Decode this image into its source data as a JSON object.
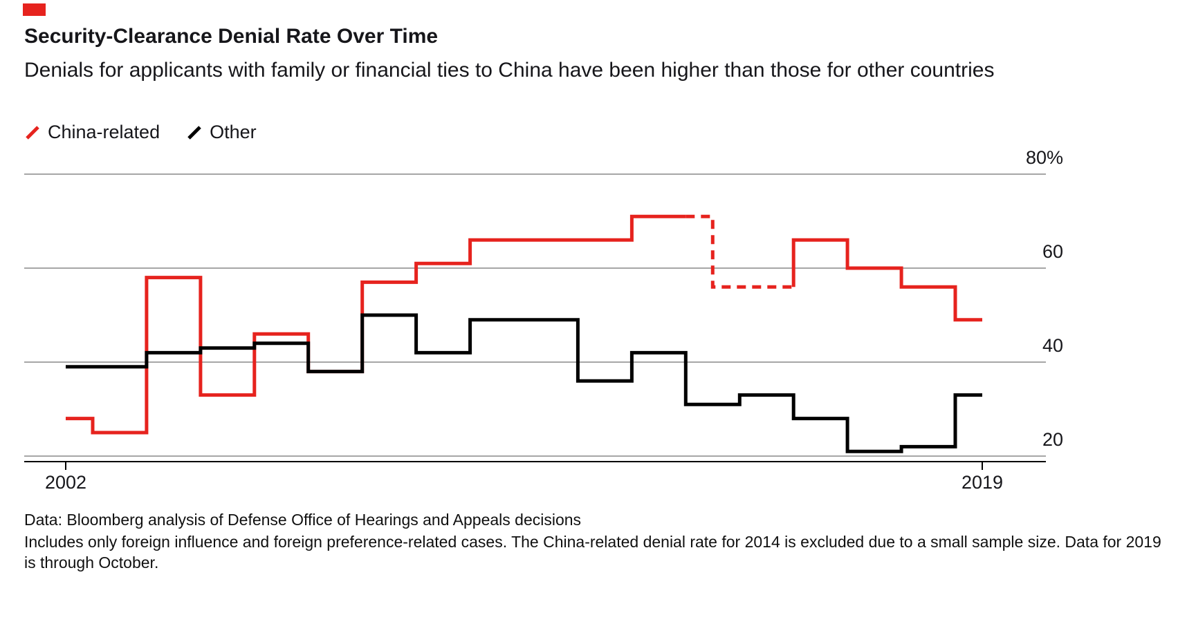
{
  "brand": {
    "accent_red": "#e6231e"
  },
  "header": {
    "title": "Security-Clearance Denial Rate Over Time",
    "subtitle": "Denials for applicants with family or financial ties to China have been higher than those for other countries"
  },
  "legend": {
    "items": [
      {
        "label": "China-related",
        "color": "#e6231e"
      },
      {
        "label": "Other",
        "color": "#000000"
      }
    ]
  },
  "chart_data": {
    "type": "step-line",
    "title": "Security-Clearance Denial Rate Over Time",
    "subtitle": "Denials for applicants with family or financial ties to China have been higher than those for other countries",
    "units": "percent",
    "x": [
      2002,
      2003,
      2004,
      2005,
      2006,
      2007,
      2008,
      2009,
      2010,
      2011,
      2012,
      2013,
      2014,
      2015,
      2016,
      2017,
      2018,
      2019
    ],
    "series": [
      {
        "name": "China-related",
        "color": "#e6231e",
        "values": [
          28,
          25,
          58,
          33,
          46,
          38,
          57,
          61,
          66,
          66,
          66,
          71,
          null,
          56,
          66,
          60,
          56,
          49
        ],
        "excluded_x": 2014,
        "excluded_note": "China-related denial rate for 2014 is excluded (drawn as dashed bridge)"
      },
      {
        "name": "Other",
        "color": "#000000",
        "values": [
          39,
          39,
          42,
          43,
          44,
          38,
          50,
          42,
          49,
          49,
          36,
          42,
          31,
          33,
          28,
          21,
          22,
          33
        ]
      }
    ],
    "ylim": [
      20,
      80
    ],
    "yticks": [
      80,
      60,
      40,
      20
    ],
    "ytick_labels": [
      "80%",
      "60",
      "40",
      "20"
    ],
    "xticks": [
      2002,
      2019
    ],
    "xtick_labels": [
      "2002",
      "2019"
    ],
    "xlabel": "",
    "ylabel": "",
    "grid": true,
    "legend_position": "top-left"
  },
  "footer": {
    "source": "Data: Bloomberg analysis of Defense Office of Hearings and Appeals decisions",
    "note": "Includes only foreign influence and foreign preference-related cases. The China-related denial rate for 2014 is excluded due to a small sample size. Data for 2019 is through October."
  }
}
